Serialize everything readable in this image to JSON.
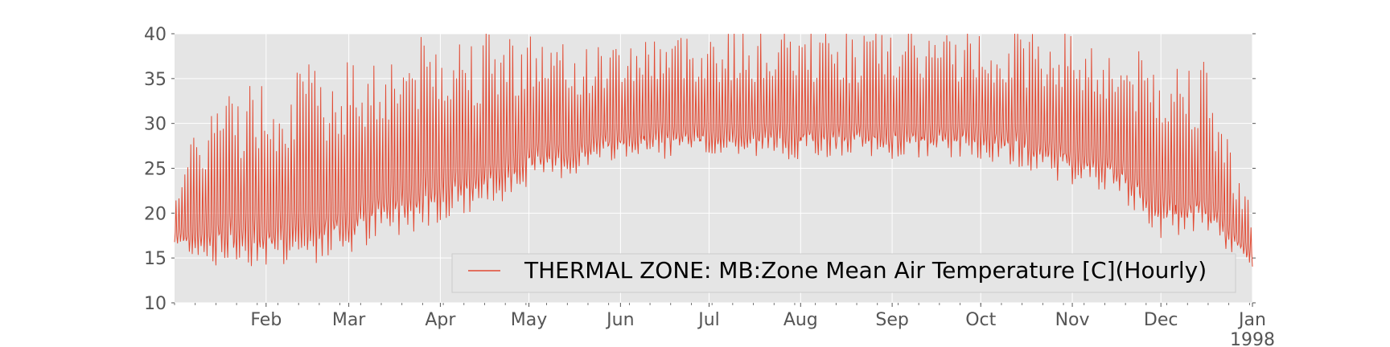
{
  "chart_data": {
    "type": "line",
    "title": "",
    "xlabel": "",
    "ylabel": "",
    "ylim": [
      10,
      40
    ],
    "xlim": [
      "1997-01-01",
      "1998-01-01"
    ],
    "grid": true,
    "legend_position": "lower-right",
    "background": "#e5e5e5",
    "y_ticks": [
      "10",
      "15",
      "20",
      "25",
      "30",
      "35",
      "40"
    ],
    "x_ticks": [
      {
        "label": "Feb",
        "date": "1997-02-01"
      },
      {
        "label": "Mar",
        "date": "1997-03-01"
      },
      {
        "label": "Apr",
        "date": "1997-04-01"
      },
      {
        "label": "May",
        "date": "1997-05-01"
      },
      {
        "label": "Jun",
        "date": "1997-06-01"
      },
      {
        "label": "Jul",
        "date": "1997-07-01"
      },
      {
        "label": "Aug",
        "date": "1997-08-01"
      },
      {
        "label": "Sep",
        "date": "1997-09-01"
      },
      {
        "label": "Oct",
        "date": "1997-10-01"
      },
      {
        "label": "Nov",
        "date": "1997-11-01"
      },
      {
        "label": "Dec",
        "date": "1997-12-01"
      },
      {
        "label": "Jan",
        "date": "1998-01-01"
      }
    ],
    "year_label": "1998",
    "series": [
      {
        "name": "THERMAL ZONE: MB:Zone Mean Air Temperature [C](Hourly)",
        "color": "#e24a33",
        "x": [
          "1997-01-01",
          "1997-01-15",
          "1997-02-01",
          "1997-02-15",
          "1997-03-01",
          "1997-03-15",
          "1997-04-01",
          "1997-04-15",
          "1997-05-01",
          "1997-05-15",
          "1997-06-01",
          "1997-06-15",
          "1997-07-01",
          "1997-07-15",
          "1997-08-01",
          "1997-08-15",
          "1997-09-01",
          "1997-09-15",
          "1997-10-01",
          "1997-10-15",
          "1997-11-01",
          "1997-11-15",
          "1997-12-01",
          "1997-12-15",
          "1998-01-01"
        ],
        "daily_min": [
          16,
          14,
          14,
          14,
          15,
          17,
          19,
          20,
          23,
          24,
          26,
          26,
          26,
          26,
          26,
          26,
          26,
          26,
          26,
          25,
          23,
          22,
          17,
          17,
          14
        ],
        "daily_max": [
          24,
          33,
          35,
          36,
          37,
          38,
          40,
          40,
          40,
          38,
          39,
          40,
          40,
          40,
          40,
          40,
          40,
          40,
          40,
          40,
          40,
          38,
          37,
          37,
          20
        ]
      }
    ]
  }
}
